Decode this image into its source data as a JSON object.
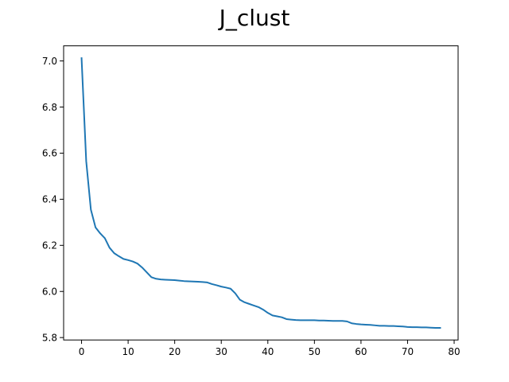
{
  "chart_data": {
    "type": "line",
    "title": "J_clust",
    "xlabel": "",
    "ylabel": "",
    "xlim": [
      -3.85,
      80.85
    ],
    "ylim": [
      5.7895,
      7.0655
    ],
    "xticks": [
      0,
      10,
      20,
      30,
      40,
      50,
      60,
      70,
      80
    ],
    "yticks": [
      5.8,
      6.0,
      6.2,
      6.4,
      6.6,
      6.8,
      7.0
    ],
    "xtick_labels": [
      "0",
      "10",
      "20",
      "30",
      "40",
      "50",
      "60",
      "70",
      "80"
    ],
    "ytick_labels": [
      "5.8",
      "6.0",
      "6.2",
      "6.4",
      "6.6",
      "6.8",
      "7.0"
    ],
    "grid": false,
    "series": [
      {
        "name": "J_clust",
        "color": "#1f77b4",
        "x": [
          0,
          1,
          2,
          3,
          4,
          5,
          6,
          7,
          8,
          9,
          10,
          11,
          12,
          13,
          14,
          15,
          16,
          17,
          18,
          19,
          20,
          21,
          22,
          23,
          24,
          25,
          26,
          27,
          28,
          29,
          30,
          31,
          32,
          33,
          34,
          35,
          36,
          37,
          38,
          39,
          40,
          41,
          42,
          43,
          44,
          45,
          46,
          47,
          48,
          49,
          50,
          51,
          52,
          53,
          54,
          55,
          56,
          57,
          58,
          59,
          60,
          61,
          62,
          63,
          64,
          65,
          66,
          67,
          68,
          69,
          70,
          71,
          72,
          73,
          74,
          75,
          76,
          77
        ],
        "y": [
          7.012,
          6.565,
          6.355,
          6.278,
          6.252,
          6.231,
          6.19,
          6.166,
          6.153,
          6.141,
          6.136,
          6.13,
          6.121,
          6.104,
          6.083,
          6.062,
          6.055,
          6.052,
          6.051,
          6.05,
          6.049,
          6.047,
          6.045,
          6.044,
          6.043,
          6.042,
          6.041,
          6.039,
          6.032,
          6.027,
          6.021,
          6.017,
          6.012,
          5.992,
          5.964,
          5.953,
          5.946,
          5.939,
          5.932,
          5.921,
          5.907,
          5.896,
          5.892,
          5.888,
          5.88,
          5.878,
          5.876,
          5.875,
          5.875,
          5.875,
          5.875,
          5.874,
          5.874,
          5.873,
          5.872,
          5.872,
          5.872,
          5.87,
          5.862,
          5.859,
          5.857,
          5.856,
          5.855,
          5.853,
          5.851,
          5.851,
          5.85,
          5.85,
          5.849,
          5.848,
          5.846,
          5.845,
          5.845,
          5.844,
          5.844,
          5.843,
          5.842,
          5.842
        ]
      }
    ]
  }
}
